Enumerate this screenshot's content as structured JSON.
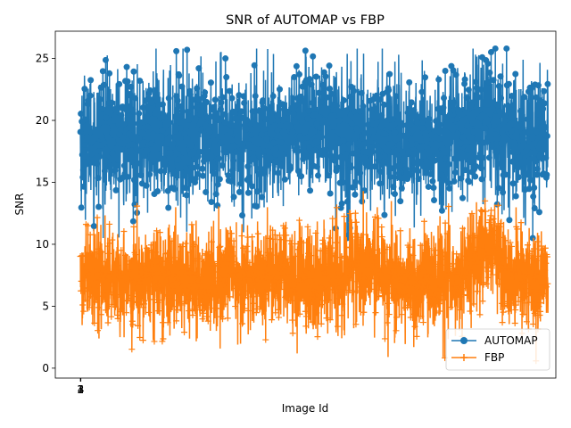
{
  "chart_data": {
    "type": "line",
    "title": "SNR of AUTOMAP vs FBP",
    "xlabel": "Image Id",
    "ylabel": "SNR",
    "xlim": [
      -160,
      3050
    ],
    "ylim": [
      -0.8,
      27.2
    ],
    "x_ticks": [
      1,
      2,
      3,
      4
    ],
    "y_ticks": [
      0,
      5,
      10,
      15,
      20,
      25
    ],
    "legend_position": "lower-right",
    "grid": false,
    "series": [
      {
        "name": "AUTOMAP",
        "color": "#1f77b4",
        "marker": "circle",
        "count": 3000,
        "summary": {
          "min": 10.5,
          "max": 25.8,
          "typical_low": 13,
          "typical_high": 24
        }
      },
      {
        "name": "FBP",
        "color": "#ff7f0e",
        "marker": "plus",
        "count": 3000,
        "summary": {
          "min": 0.4,
          "max": 14.3,
          "typical_low": 3.5,
          "typical_high": 12
        }
      }
    ]
  }
}
